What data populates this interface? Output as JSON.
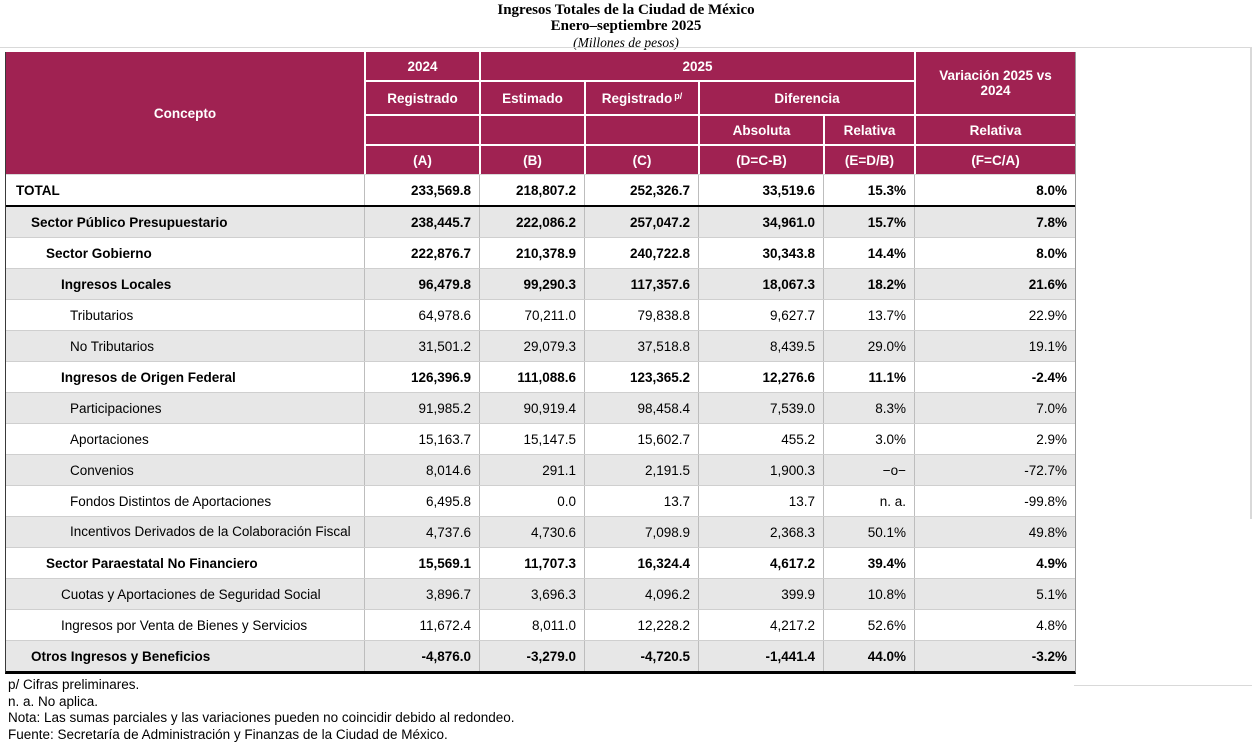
{
  "title": {
    "line1": "Ingresos Totales de la Ciudad de México",
    "line2": "Enero–septiembre 2025",
    "line3": "(Millones de pesos)"
  },
  "table": {
    "header": {
      "concepto": "Concepto",
      "y2024": "2024",
      "y2025": "2025",
      "registrado": "Registrado",
      "estimado": "Estimado",
      "registrado_p": "Registrado",
      "registrado_p_sup": "p/",
      "diferencia": "Diferencia",
      "absoluta": "Absoluta",
      "relativa": "Relativa",
      "variacion": "Variación 2025 vs 2024",
      "variacion_relativa": "Relativa",
      "col_a": "(A)",
      "col_b": "(B)",
      "col_c": "(C)",
      "col_d": "(D=C-B)",
      "col_e": "(E=D/B)",
      "col_f": "(F=C/A)"
    },
    "rows": [
      {
        "concepto": "TOTAL",
        "level": 0,
        "bold": true,
        "separator": true,
        "a": "233,569.8",
        "b": "218,807.2",
        "c": "252,326.7",
        "d": "33,519.6",
        "e": "15.3%",
        "f": "8.0%"
      },
      {
        "concepto": "Sector Público Presupuestario",
        "level": 1,
        "bold": true,
        "a": "238,445.7",
        "b": "222,086.2",
        "c": "257,047.2",
        "d": "34,961.0",
        "e": "15.7%",
        "f": "7.8%"
      },
      {
        "concepto": "Sector Gobierno",
        "level": 2,
        "bold": true,
        "a": "222,876.7",
        "b": "210,378.9",
        "c": "240,722.8",
        "d": "30,343.8",
        "e": "14.4%",
        "f": "8.0%"
      },
      {
        "concepto": "Ingresos Locales",
        "level": 3,
        "bold": true,
        "a": "96,479.8",
        "b": "99,290.3",
        "c": "117,357.6",
        "d": "18,067.3",
        "e": "18.2%",
        "f": "21.6%"
      },
      {
        "concepto": "Tributarios",
        "level": 4,
        "bold": false,
        "a": "64,978.6",
        "b": "70,211.0",
        "c": "79,838.8",
        "d": "9,627.7",
        "e": "13.7%",
        "f": "22.9%"
      },
      {
        "concepto": "No Tributarios",
        "level": 4,
        "bold": false,
        "a": "31,501.2",
        "b": "29,079.3",
        "c": "37,518.8",
        "d": "8,439.5",
        "e": "29.0%",
        "f": "19.1%"
      },
      {
        "concepto": "Ingresos de Origen Federal",
        "level": 3,
        "bold": true,
        "a": "126,396.9",
        "b": "111,088.6",
        "c": "123,365.2",
        "d": "12,276.6",
        "e": "11.1%",
        "f": "-2.4%"
      },
      {
        "concepto": "Participaciones",
        "level": 4,
        "bold": false,
        "a": "91,985.2",
        "b": "90,919.4",
        "c": "98,458.4",
        "d": "7,539.0",
        "e": "8.3%",
        "f": "7.0%"
      },
      {
        "concepto": "Aportaciones",
        "level": 4,
        "bold": false,
        "a": "15,163.7",
        "b": "15,147.5",
        "c": "15,602.7",
        "d": "455.2",
        "e": "3.0%",
        "f": "2.9%"
      },
      {
        "concepto": "Convenios",
        "level": 4,
        "bold": false,
        "a": "8,014.6",
        "b": "291.1",
        "c": "2,191.5",
        "d": "1,900.3",
        "e": "−o−",
        "f": "-72.7%"
      },
      {
        "concepto": "Fondos Distintos de Aportaciones",
        "level": 4,
        "bold": false,
        "a": "6,495.8",
        "b": "0.0",
        "c": "13.7",
        "d": "13.7",
        "e": "n. a.",
        "f": "-99.8%"
      },
      {
        "concepto": "Incentivos Derivados de la Colaboración Fiscal",
        "level": 4,
        "bold": false,
        "hang": true,
        "a": "4,737.6",
        "b": "4,730.6",
        "c": "7,098.9",
        "d": "2,368.3",
        "e": "50.1%",
        "f": "49.8%"
      },
      {
        "concepto": "Sector Paraestatal No Financiero",
        "level": 2,
        "bold": true,
        "a": "15,569.1",
        "b": "11,707.3",
        "c": "16,324.4",
        "d": "4,617.2",
        "e": "39.4%",
        "f": "4.9%"
      },
      {
        "concepto": "Cuotas y Aportaciones de Seguridad Social",
        "level": 3,
        "bold": false,
        "a": "3,896.7",
        "b": "3,696.3",
        "c": "4,096.2",
        "d": "399.9",
        "e": "10.8%",
        "f": "5.1%"
      },
      {
        "concepto": "Ingresos por Venta de Bienes y Servicios",
        "level": 3,
        "bold": false,
        "a": "11,672.4",
        "b": "8,011.0",
        "c": "12,228.2",
        "d": "4,217.2",
        "e": "52.6%",
        "f": "4.8%"
      },
      {
        "concepto": "Otros Ingresos y Beneficios",
        "level": 1,
        "bold": true,
        "a": "-4,876.0",
        "b": "-3,279.0",
        "c": "-4,720.5",
        "d": "-1,441.4",
        "e": "44.0%",
        "f": "-3.2%"
      }
    ]
  },
  "footnotes": [
    "p/ Cifras preliminares.",
    "n. a. No aplica.",
    "Nota: Las sumas parciales y las variaciones pueden no coincidir debido al redondeo.",
    "Fuente: Secretaría de Administración y Finanzas de la Ciudad de México."
  ],
  "colors": {
    "header_bg": "#A02252",
    "header_text": "#FFFFFF",
    "row_alt_bg": "#E7E7E7",
    "grid_line": "#BDBDBD",
    "strong_line": "#000000"
  }
}
